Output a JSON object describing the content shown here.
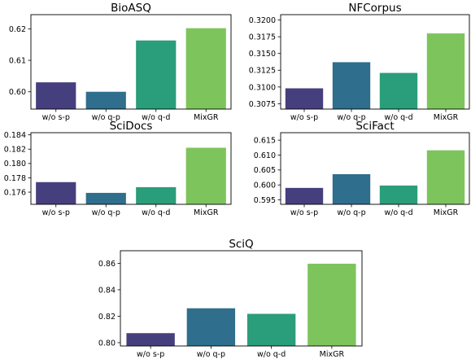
{
  "chart_data": [
    {
      "type": "bar",
      "title": "BioASQ",
      "categories": [
        "w/o s-p",
        "w/o q-p",
        "w/o q-d",
        "MixGR"
      ],
      "values": [
        0.603,
        0.6,
        0.6163,
        0.6202
      ],
      "colors": [
        "#463f7e",
        "#2f6e8c",
        "#2a9d7a",
        "#7ec45c"
      ],
      "ylim": [
        0.5945,
        0.6245
      ],
      "yticks": [
        0.6,
        0.61,
        0.62
      ],
      "ytick_labels": [
        "0.60",
        "0.61",
        "0.62"
      ],
      "xlabel": "",
      "ylabel": "",
      "grid": false
    },
    {
      "type": "bar",
      "title": "NFCorpus",
      "categories": [
        "w/o s-p",
        "w/o q-p",
        "w/o q-d",
        "MixGR"
      ],
      "values": [
        0.3098,
        0.3137,
        0.3121,
        0.318
      ],
      "colors": [
        "#463f7e",
        "#2f6e8c",
        "#2a9d7a",
        "#7ec45c"
      ],
      "ylim": [
        0.3067,
        0.3208
      ],
      "yticks": [
        0.3075,
        0.31,
        0.3125,
        0.315,
        0.3175,
        0.32
      ],
      "ytick_labels": [
        "0.3075",
        "0.3100",
        "0.3125",
        "0.3150",
        "0.3175",
        "0.3200"
      ],
      "xlabel": "",
      "ylabel": "",
      "grid": false
    },
    {
      "type": "bar",
      "title": "SciDocs",
      "categories": [
        "w/o s-p",
        "w/o q-p",
        "w/o q-d",
        "MixGR"
      ],
      "values": [
        0.1774,
        0.1759,
        0.1767,
        0.1822
      ],
      "colors": [
        "#463f7e",
        "#2f6e8c",
        "#2a9d7a",
        "#7ec45c"
      ],
      "ylim": [
        0.1743,
        0.1843
      ],
      "yticks": [
        0.176,
        0.178,
        0.18,
        0.182,
        0.184
      ],
      "ytick_labels": [
        "0.176",
        "0.178",
        "0.180",
        "0.182",
        "0.184"
      ],
      "xlabel": "",
      "ylabel": "",
      "grid": false
    },
    {
      "type": "bar",
      "title": "SciFact",
      "categories": [
        "w/o s-p",
        "w/o q-p",
        "w/o q-d",
        "MixGR"
      ],
      "values": [
        0.599,
        0.6036,
        0.5998,
        0.6116
      ],
      "colors": [
        "#463f7e",
        "#2f6e8c",
        "#2a9d7a",
        "#7ec45c"
      ],
      "ylim": [
        0.5935,
        0.6175
      ],
      "yticks": [
        0.595,
        0.6,
        0.605,
        0.61,
        0.615
      ],
      "ytick_labels": [
        "0.595",
        "0.600",
        "0.605",
        "0.610",
        "0.615"
      ],
      "xlabel": "",
      "ylabel": "",
      "grid": false
    },
    {
      "type": "bar",
      "title": "SciQ",
      "categories": [
        "w/o s-p",
        "w/o q-p",
        "w/o q-d",
        "MixGR"
      ],
      "values": [
        0.8072,
        0.826,
        0.8218,
        0.8597
      ],
      "colors": [
        "#463f7e",
        "#2f6e8c",
        "#2a9d7a",
        "#7ec45c"
      ],
      "ylim": [
        0.7975,
        0.8695
      ],
      "yticks": [
        0.8,
        0.82,
        0.84,
        0.86
      ],
      "ytick_labels": [
        "0.80",
        "0.82",
        "0.84",
        "0.86"
      ],
      "xlabel": "",
      "ylabel": "",
      "grid": false
    }
  ]
}
